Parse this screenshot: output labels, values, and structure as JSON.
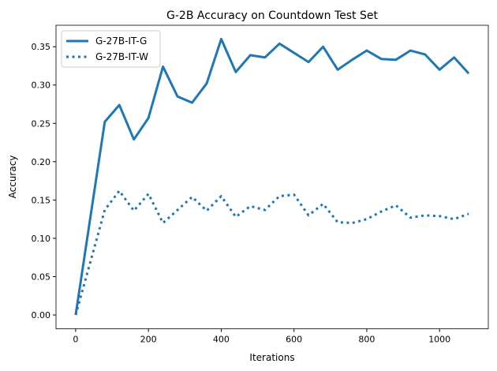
{
  "chart_data": {
    "type": "line",
    "title": "G-2B Accuracy on Countdown Test Set",
    "xlabel": "Iterations",
    "ylabel": "Accuracy",
    "xlim": [
      -54,
      1134
    ],
    "ylim": [
      -0.018,
      0.378
    ],
    "xticks": [
      0,
      200,
      400,
      600,
      800,
      1000
    ],
    "yticks": [
      0.0,
      0.05,
      0.1,
      0.15,
      0.2,
      0.25,
      0.3,
      0.35
    ],
    "ytick_labels": [
      "0.00",
      "0.05",
      "0.10",
      "0.15",
      "0.20",
      "0.25",
      "0.30",
      "0.35"
    ],
    "grid": false,
    "legend_position": "top-left",
    "x": [
      0,
      80,
      120,
      160,
      200,
      240,
      280,
      320,
      360,
      400,
      440,
      480,
      520,
      560,
      600,
      640,
      680,
      720,
      760,
      800,
      840,
      880,
      920,
      960,
      1000,
      1040,
      1080
    ],
    "series": [
      {
        "name": "G-27B-IT-G",
        "style": "solid",
        "color": "#1f77b4",
        "values": [
          0,
          0.252,
          0.274,
          0.229,
          0.257,
          0.324,
          0.285,
          0.277,
          0.302,
          0.36,
          0.317,
          0.339,
          0.336,
          0.354,
          0.342,
          0.33,
          0.35,
          0.32,
          0.333,
          0.345,
          0.334,
          0.333,
          0.345,
          0.34,
          0.32,
          0.336,
          0.315
        ]
      },
      {
        "name": "G-27B-IT-W",
        "style": "dotted",
        "color": "#1f77b4",
        "values": [
          0,
          0.137,
          0.162,
          0.136,
          0.158,
          0.12,
          0.137,
          0.154,
          0.136,
          0.155,
          0.128,
          0.142,
          0.137,
          0.155,
          0.157,
          0.13,
          0.145,
          0.121,
          0.12,
          0.125,
          0.135,
          0.143,
          0.127,
          0.13,
          0.129,
          0.125,
          0.132
        ]
      }
    ]
  }
}
